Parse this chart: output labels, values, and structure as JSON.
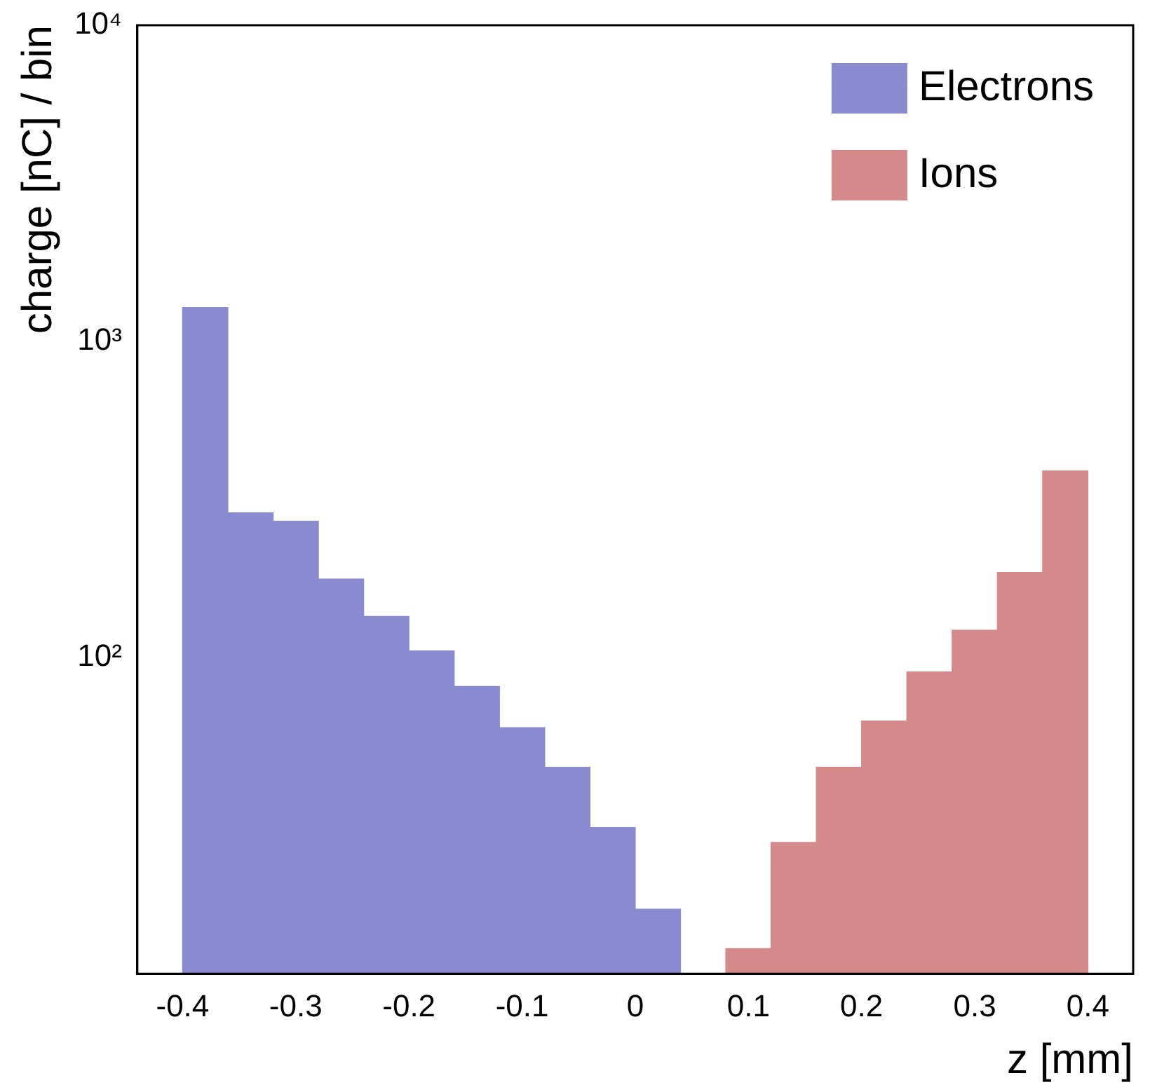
{
  "chart_data": {
    "type": "histogram",
    "xlabel": "z [mm]",
    "ylabel": "charge [nC] / bin",
    "bins": [
      -0.4,
      -0.36,
      -0.32,
      -0.28,
      -0.24,
      -0.2,
      -0.16,
      -0.12,
      -0.08,
      -0.04,
      0,
      0.04,
      0.08,
      0.12,
      0.16,
      0.2,
      0.24,
      0.28,
      0.32,
      0.36,
      0.4
    ],
    "series": [
      {
        "name": "Electrons",
        "color": "#8a8ad0",
        "values": [
          1280,
          287,
          270,
          177,
          135,
          105,
          81,
          60,
          45,
          29,
          16,
          null,
          null,
          null,
          null,
          null,
          null,
          null,
          null,
          null
        ]
      },
      {
        "name": "Ions",
        "color": "#d48a8a",
        "values": [
          null,
          null,
          null,
          null,
          null,
          null,
          null,
          null,
          null,
          null,
          null,
          null,
          12,
          26,
          45,
          63,
          90,
          122,
          186,
          389
        ]
      }
    ],
    "xlim": [
      -0.44,
      0.44
    ],
    "xticks": [
      -0.4,
      -0.3,
      -0.2,
      -0.1,
      0,
      0.1,
      0.2,
      0.3,
      0.4
    ],
    "ylim": [
      10,
      10000
    ],
    "yticks": [
      {
        "value": 10,
        "label": null
      },
      {
        "value": 100,
        "label": "10²"
      },
      {
        "value": 1000,
        "label": "10³"
      },
      {
        "value": 10000,
        "label": "10⁴"
      }
    ],
    "log": true,
    "grid": false,
    "legend": "top right"
  }
}
